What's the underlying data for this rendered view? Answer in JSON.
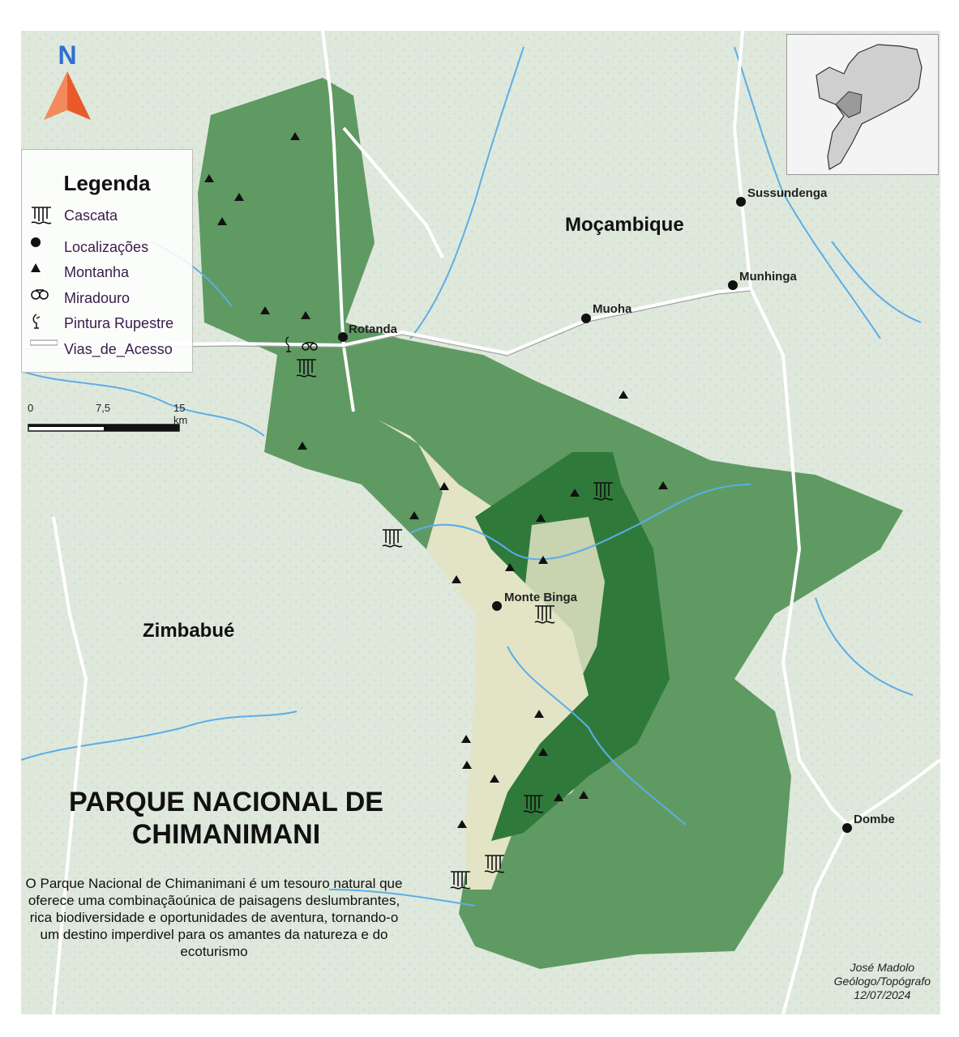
{
  "map": {
    "title_line1": "PARQUE NACIONAL DE",
    "title_line2": "CHIMANIMANI",
    "description": "O Parque Nacional de Chimanimani é um tesouro natural que oferece uma combinaçãoúnica de paisagens deslumbrantes, rica biodiversidade e oportunidades de aventura, tornando-o um destino imperdivel  para os amantes da natureza e do ecoturismo",
    "north_label": "N",
    "countries": {
      "mozambique": "Moçambique",
      "zimbabwe": "Zimbabué"
    },
    "places": {
      "sussundenga": "Sussundenga",
      "munhinga": "Munhinga",
      "muoha": "Muoha",
      "rotanda": "Rotanda",
      "monte_binga": "Monte Binga",
      "dombe": "Dombe"
    },
    "credits": {
      "author": "José Madolo",
      "role": "Geólogo/Topógrafo",
      "date": "12/07/2024"
    }
  },
  "legend": {
    "title": "Legenda",
    "items": [
      {
        "label": "Cascata",
        "icon": "waterfall-icon"
      },
      {
        "label": "Localizações",
        "icon": "location-dot-icon"
      },
      {
        "label": "Montanha",
        "icon": "mountain-triangle-icon"
      },
      {
        "label": "Miradouro",
        "icon": "binoculars-icon"
      },
      {
        "label": "Pintura Rupestre",
        "icon": "rock-painting-icon"
      },
      {
        "label": "Vias_de_Acesso",
        "icon": "road-line-icon"
      }
    ]
  },
  "scalebar": {
    "labels": [
      "0",
      "7,5",
      "15 km"
    ]
  },
  "colors": {
    "park_dark": "#2f7a3a",
    "park_mid": "#5f9a63",
    "park_light": "#e3e3c6",
    "water": "#5aaee8",
    "road": "#ffffff",
    "background": "#dfe8dc",
    "north_arrow": "#f26b3a"
  }
}
